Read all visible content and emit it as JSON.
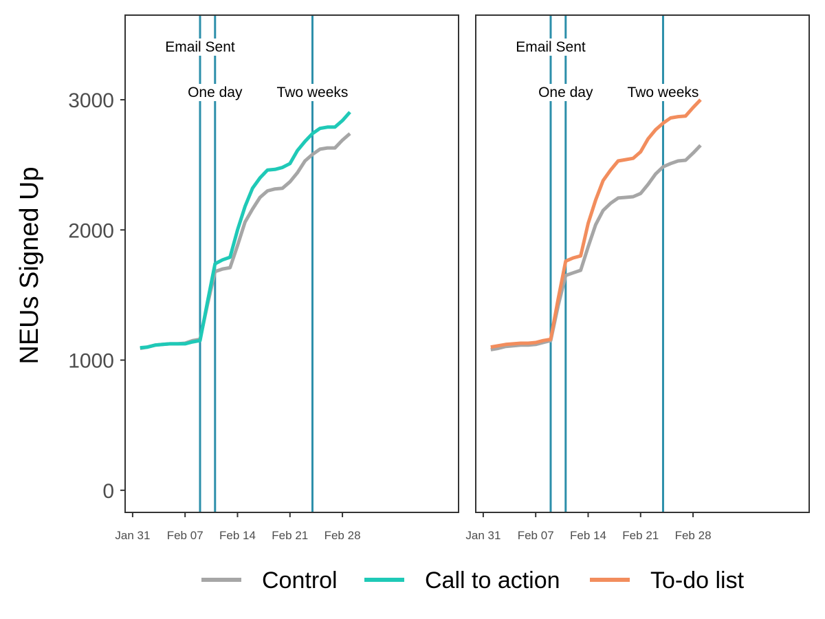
{
  "chart_data": {
    "type": "line",
    "ylabel": "NEUs Signed Up",
    "ylim": [
      -170,
      3650
    ],
    "yticks": [
      0,
      1000,
      2000,
      3000
    ],
    "yticklabels": [
      "0",
      "1000",
      "2000",
      "3000"
    ],
    "xlim": [
      -1,
      43.5
    ],
    "xticks": [
      0,
      7,
      14,
      21,
      28
    ],
    "xticklabels": [
      "Jan 31",
      "Feb 07",
      "Feb 14",
      "Feb 21",
      "Feb 28"
    ],
    "x": [
      1,
      2,
      3,
      4,
      5,
      6,
      7,
      8,
      9,
      10,
      11,
      12,
      13,
      14,
      15,
      16,
      17,
      18,
      19,
      20,
      21,
      22,
      23,
      24,
      25,
      26,
      27,
      28,
      29
    ],
    "events": [
      {
        "label": "Email Sent",
        "x": 9
      },
      {
        "label": "One day",
        "x": 11
      },
      {
        "label": "Two weeks",
        "x": 24
      }
    ],
    "colors": {
      "Control": "#a6a6a6",
      "Call to action": "#1fc9b7",
      "To-do list": "#f28d5d",
      "vline": "#2c8faa"
    },
    "panels": [
      {
        "name": "left",
        "series": [
          {
            "name": "Control",
            "values": [
              1090,
              1100,
              1115,
              1120,
              1125,
              1125,
              1130,
              1150,
              1160,
              1430,
              1680,
              1700,
              1710,
              1880,
              2060,
              2160,
              2250,
              2300,
              2315,
              2320,
              2370,
              2440,
              2530,
              2580,
              2620,
              2630,
              2630,
              2690,
              2740
            ]
          },
          {
            "name": "Call to action",
            "values": [
              1095,
              1100,
              1115,
              1120,
              1125,
              1125,
              1125,
              1140,
              1150,
              1450,
              1740,
              1770,
              1790,
              2000,
              2180,
              2320,
              2400,
              2460,
              2465,
              2480,
              2510,
              2610,
              2680,
              2740,
              2780,
              2790,
              2790,
              2840,
              2905
            ]
          }
        ]
      },
      {
        "name": "right",
        "series": [
          {
            "name": "Control",
            "values": [
              1080,
              1090,
              1105,
              1110,
              1115,
              1115,
              1120,
              1135,
              1150,
              1420,
              1650,
              1670,
              1690,
              1870,
              2040,
              2150,
              2205,
              2245,
              2250,
              2255,
              2280,
              2350,
              2430,
              2485,
              2510,
              2530,
              2535,
              2590,
              2650
            ]
          },
          {
            "name": "To-do list",
            "values": [
              1100,
              1110,
              1120,
              1125,
              1130,
              1130,
              1135,
              1150,
              1160,
              1470,
              1760,
              1785,
              1800,
              2050,
              2230,
              2380,
              2460,
              2530,
              2540,
              2550,
              2600,
              2700,
              2770,
              2820,
              2860,
              2870,
              2875,
              2940,
              3000
            ]
          }
        ]
      }
    ],
    "legend": [
      "Control",
      "Call to action",
      "To-do list"
    ]
  }
}
